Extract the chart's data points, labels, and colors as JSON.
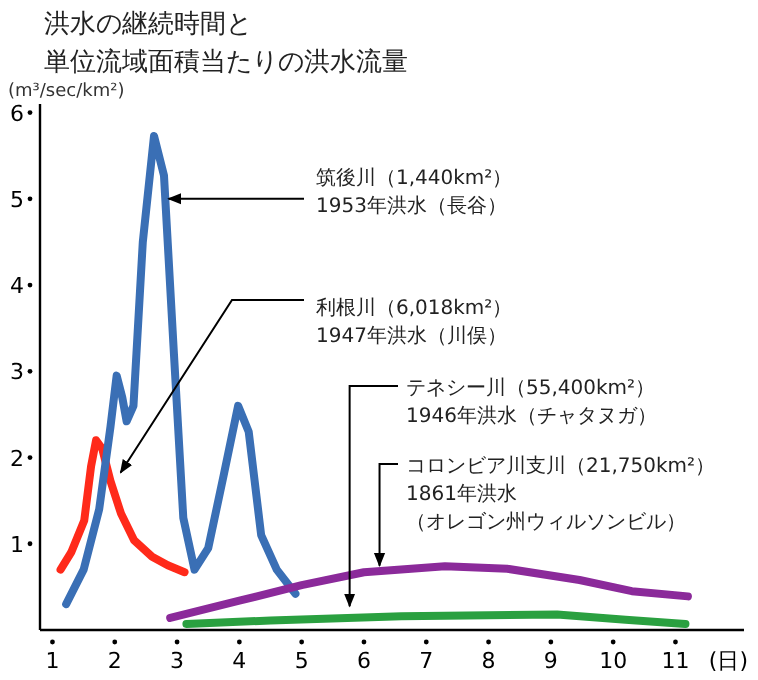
{
  "chart_data": {
    "type": "line",
    "title": "洪水の継続時間と",
    "subtitle": "単位流域面積当たりの洪水流量",
    "ylabel": "(m³/sec/km²)",
    "xlabel": "(日)",
    "xlim": [
      0.8,
      12.1
    ],
    "xticks": [
      1,
      2,
      3,
      4,
      5,
      6,
      7,
      8,
      9,
      10,
      11
    ],
    "ylim": [
      0,
      6.1
    ],
    "yticks": [
      1,
      2,
      3,
      4,
      5,
      6
    ],
    "grid": false,
    "marker": "none",
    "line_style": "solid",
    "series": [
      {
        "color": "#ff2a1a",
        "x": [
          1.13,
          1.3,
          1.51,
          1.62,
          1.7,
          1.8,
          1.93,
          2.1,
          2.31,
          2.6,
          2.85,
          3.12
        ],
        "values": [
          0.7,
          0.9,
          1.27,
          1.9,
          2.2,
          2.1,
          1.73,
          1.35,
          1.04,
          0.85,
          0.75,
          0.67
        ]
      },
      {
        "color": "#3a6fb5",
        "x": [
          1.22,
          1.5,
          1.75,
          1.93,
          2.03,
          2.12,
          2.19,
          2.3,
          2.45,
          2.63,
          2.79,
          2.95,
          3.1,
          3.28,
          3.5,
          3.75,
          3.98,
          4.15,
          4.35,
          4.6,
          4.9
        ],
        "values": [
          0.3,
          0.7,
          1.4,
          2.35,
          2.95,
          2.7,
          2.42,
          2.6,
          4.5,
          5.73,
          5.27,
          3.2,
          1.3,
          0.7,
          0.95,
          1.8,
          2.6,
          2.3,
          1.1,
          0.7,
          0.42
        ]
      },
      {
        "color": "#8b2a9a",
        "x": [
          2.89,
          4.0,
          5.0,
          6.0,
          7.3,
          8.3,
          9.46,
          10.3,
          11.2
        ],
        "values": [
          0.14,
          0.34,
          0.52,
          0.67,
          0.74,
          0.71,
          0.58,
          0.45,
          0.39
        ]
      },
      {
        "color": "#2aa040",
        "x": [
          3.15,
          4.5,
          6.6,
          9.1,
          10.2,
          11.16
        ],
        "values": [
          0.07,
          0.11,
          0.16,
          0.18,
          0.12,
          0.07
        ]
      }
    ],
    "annotations": [
      {
        "text": "筑後川（1,440km²）\n1953年洪水（長谷）",
        "x": 2.8,
        "y": 5.0
      },
      {
        "text": "利根川（6,018km²）\n1947年洪水（川俣）",
        "x": 2.03,
        "y": 1.78
      },
      {
        "text": "テネシー川（55,400km²）\n1946年洪水（チャタヌガ）",
        "x": 5.77,
        "y": 0.23
      },
      {
        "text": "コロンビア川支川（21,750km²）\n1861年洪水",
        "x": 6.25,
        "y": 0.7
      },
      "（オレゴン州ウィルソンビル）"
    ]
  }
}
